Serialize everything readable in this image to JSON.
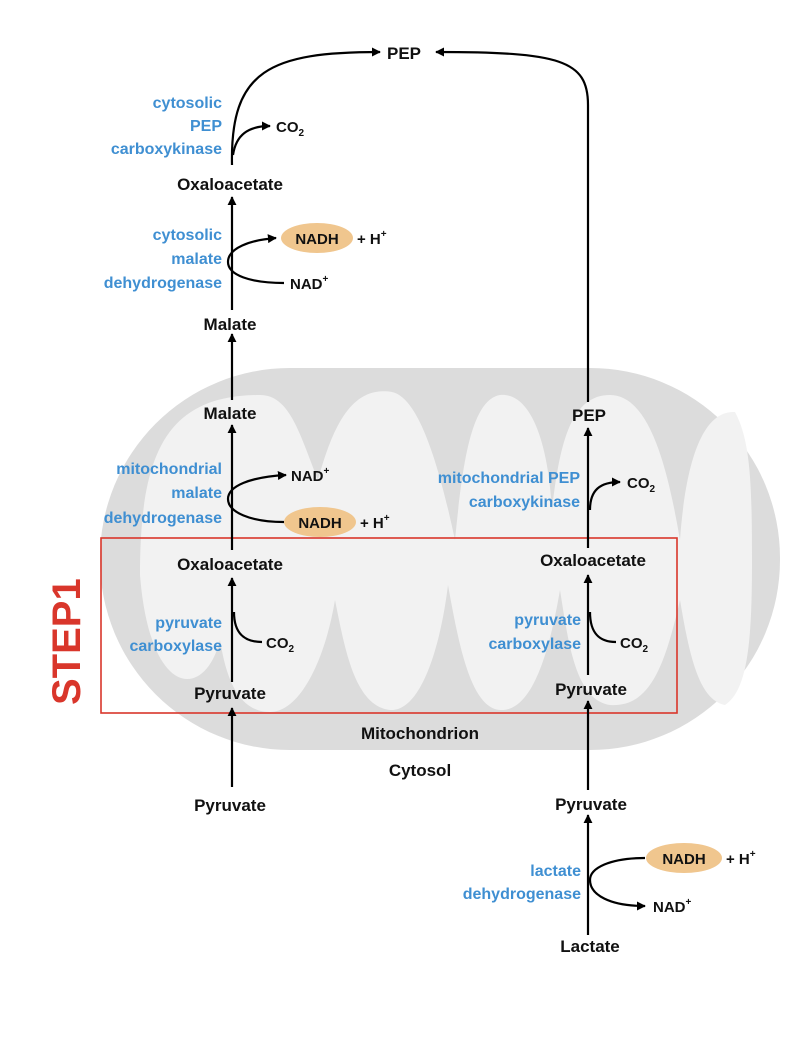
{
  "step_label": "STEP1",
  "regions": {
    "mitochondrion": "Mitochondrion",
    "cytosol": "Cytosol"
  },
  "metabolites": {
    "pep_top": "PEP",
    "oaa_cyto": "Oxaloacetate",
    "malate_cyto": "Malate",
    "malate_mito": "Malate",
    "oaa_mito_left": "Oxaloacetate",
    "pyruvate_mito_left": "Pyruvate",
    "pyruvate_cyto_left": "Pyruvate",
    "pep_mito": "PEP",
    "oaa_mito_right": "Oxaloacetate",
    "pyruvate_mito_right": "Pyruvate",
    "pyruvate_cyto_right": "Pyruvate",
    "lactate": "Lactate"
  },
  "enzymes": {
    "cyto_pepck": [
      "cytosolic",
      "PEP",
      "carboxykinase"
    ],
    "cyto_mdh": [
      "cytosolic",
      "malate",
      "dehydrogenase"
    ],
    "mito_mdh": [
      "mitochondrial",
      "malate",
      "dehydrogenase"
    ],
    "pc_left": [
      "pyruvate",
      "carboxylase"
    ],
    "mito_pepck": [
      "mitochondrial PEP",
      "carboxykinase"
    ],
    "pc_right": [
      "pyruvate",
      "carboxylase"
    ],
    "ldh": [
      "lactate",
      "dehydrogenase"
    ]
  },
  "cofactors": {
    "co2": {
      "base": "CO",
      "sub": "2"
    },
    "nadh": "NADH",
    "h_plus": {
      "base": "+ H",
      "sup": "+"
    },
    "nad_plus": {
      "base": "NAD",
      "sup": "+"
    }
  },
  "colors": {
    "enzyme_text": "#3f8fd2",
    "nadh_fill": "#f0c68e",
    "mitochondrion_fill": "#dcdcdc",
    "step_box": "#d9362b"
  }
}
